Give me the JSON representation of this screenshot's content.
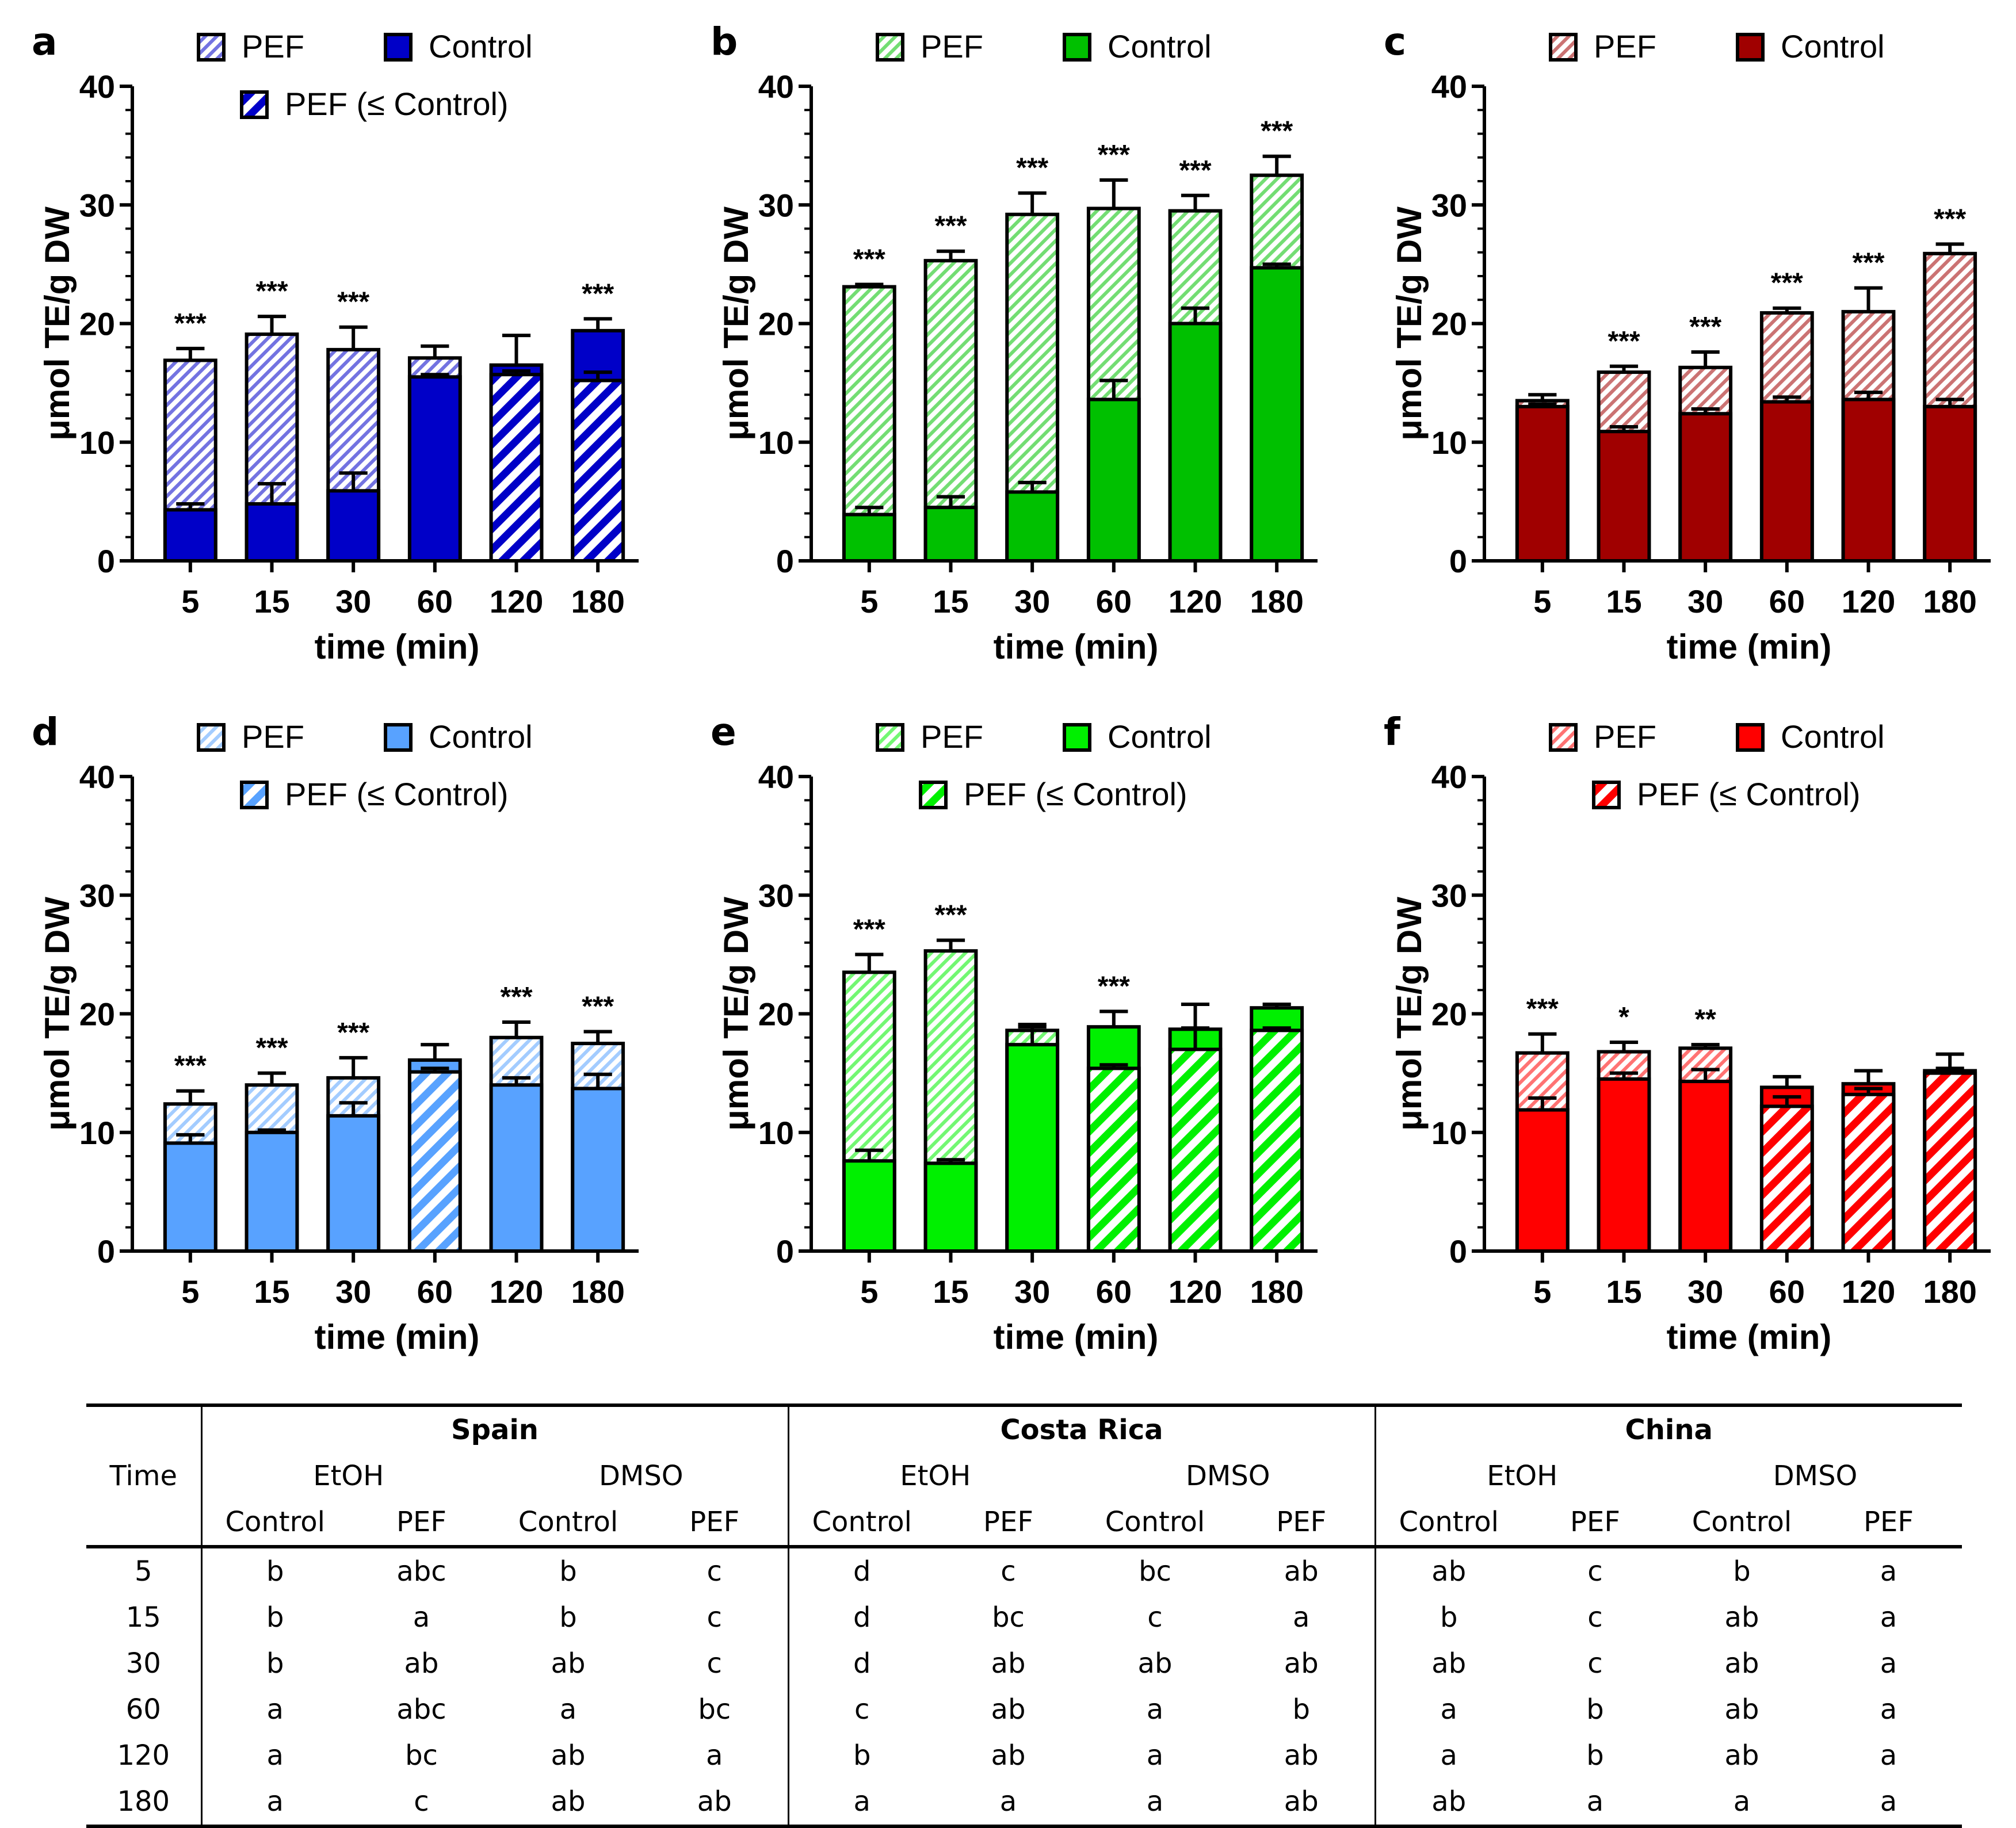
{
  "chart_data": [
    {
      "type": "bar",
      "panel": "a",
      "title": "",
      "xlabel": "time (min)",
      "ylabel": "μmol TE/g DW",
      "ylim": [
        0,
        40
      ],
      "yticks": [
        "0",
        "10",
        "20",
        "30",
        "40"
      ],
      "categories": [
        "5",
        "15",
        "30",
        "60",
        "120",
        "180"
      ],
      "colors": {
        "main": "#0000C8",
        "light": "#9FA3E6"
      },
      "legend": [
        "PEF",
        "Control",
        "PEF (≤ Control)"
      ],
      "series": [
        {
          "name": "PEF",
          "values": [
            16.9,
            19.1,
            17.8,
            17.1,
            15.7,
            15.2
          ],
          "errors": [
            1.0,
            1.5,
            1.9,
            1.0,
            0.3,
            0.7
          ]
        },
        {
          "name": "Control",
          "values": [
            4.3,
            4.8,
            5.9,
            15.5,
            16.5,
            19.4
          ],
          "errors": [
            0.5,
            1.7,
            1.5,
            0.2,
            2.5,
            1.0
          ]
        }
      ],
      "significance": [
        "***",
        "***",
        "***",
        "",
        "",
        "***"
      ]
    },
    {
      "type": "bar",
      "panel": "b",
      "title": "",
      "xlabel": "time (min)",
      "ylabel": "μmol TE/g DW",
      "ylim": [
        0,
        40
      ],
      "yticks": [
        "0",
        "10",
        "20",
        "30",
        "40"
      ],
      "categories": [
        "5",
        "15",
        "30",
        "60",
        "120",
        "180"
      ],
      "colors": {
        "main": "#00C000",
        "light": "#A6E2A6"
      },
      "legend": [
        "PEF",
        "Control"
      ],
      "series": [
        {
          "name": "PEF",
          "values": [
            23.1,
            25.3,
            29.2,
            29.7,
            29.5,
            32.5
          ],
          "errors": [
            0.2,
            0.8,
            1.8,
            2.4,
            1.3,
            1.6
          ]
        },
        {
          "name": "Control",
          "values": [
            3.9,
            4.5,
            5.8,
            13.6,
            20.0,
            24.7
          ],
          "errors": [
            0.6,
            0.9,
            0.8,
            1.6,
            1.3,
            0.3
          ]
        }
      ],
      "significance": [
        "***",
        "***",
        "***",
        "***",
        "***",
        "***"
      ]
    },
    {
      "type": "bar",
      "panel": "c",
      "title": "",
      "xlabel": "time (min)",
      "ylabel": "μmol TE/g DW",
      "ylim": [
        0,
        40
      ],
      "yticks": [
        "0",
        "10",
        "20",
        "30",
        "40"
      ],
      "categories": [
        "5",
        "15",
        "30",
        "60",
        "120",
        "180"
      ],
      "colors": {
        "main": "#A00000",
        "light": "#E6B5B5"
      },
      "legend": [
        "PEF",
        "Control"
      ],
      "series": [
        {
          "name": "PEF",
          "values": [
            13.5,
            15.9,
            16.3,
            20.9,
            21.0,
            25.9
          ],
          "errors": [
            0.5,
            0.5,
            1.3,
            0.4,
            2.0,
            0.8
          ]
        },
        {
          "name": "Control",
          "values": [
            13.0,
            10.9,
            12.4,
            13.4,
            13.6,
            13.0
          ],
          "errors": [
            0.2,
            0.4,
            0.4,
            0.4,
            0.6,
            0.6
          ]
        }
      ],
      "significance": [
        "",
        "***",
        "***",
        "***",
        "***",
        "***"
      ]
    },
    {
      "type": "bar",
      "panel": "d",
      "title": "",
      "xlabel": "time (min)",
      "ylabel": "μmol TE/g DW",
      "ylim": [
        0,
        40
      ],
      "yticks": [
        "0",
        "10",
        "20",
        "30",
        "40"
      ],
      "categories": [
        "5",
        "15",
        "30",
        "60",
        "120",
        "180"
      ],
      "colors": {
        "main": "#58A2FF",
        "light": "#C5DDFA"
      },
      "legend": [
        "PEF",
        "Control",
        "PEF (≤ Control)"
      ],
      "series": [
        {
          "name": "PEF",
          "values": [
            12.4,
            14.0,
            14.6,
            15.1,
            18.0,
            17.5
          ],
          "errors": [
            1.1,
            1.0,
            1.7,
            0.3,
            1.3,
            1.0
          ]
        },
        {
          "name": "Control",
          "values": [
            9.1,
            10.0,
            11.4,
            16.1,
            14.0,
            13.7
          ],
          "errors": [
            0.7,
            0.2,
            1.1,
            1.3,
            0.6,
            1.2
          ]
        }
      ],
      "significance": [
        "***",
        "***",
        "***",
        "",
        "***",
        "***"
      ]
    },
    {
      "type": "bar",
      "panel": "e",
      "title": "",
      "xlabel": "time (min)",
      "ylabel": "μmol TE/g DW",
      "ylim": [
        0,
        40
      ],
      "yticks": [
        "0",
        "10",
        "20",
        "30",
        "40"
      ],
      "categories": [
        "5",
        "15",
        "30",
        "60",
        "120",
        "180"
      ],
      "colors": {
        "main": "#00F000",
        "light": "#ADF2AD"
      },
      "legend": [
        "PEF",
        "Control",
        "PEF (≤ Control)"
      ],
      "series": [
        {
          "name": "PEF",
          "values": [
            23.5,
            25.3,
            18.6,
            15.4,
            17.0,
            18.6
          ],
          "errors": [
            1.5,
            0.9,
            0.3,
            0.3,
            1.8,
            0.2
          ]
        },
        {
          "name": "Control",
          "values": [
            7.6,
            7.4,
            17.4,
            18.9,
            18.7,
            20.5
          ],
          "errors": [
            0.9,
            0.3,
            1.7,
            1.3,
            2.1,
            0.3
          ]
        }
      ],
      "significance": [
        "***",
        "***",
        "",
        "***",
        "",
        ""
      ]
    },
    {
      "type": "bar",
      "panel": "f",
      "title": "",
      "xlabel": "time (min)",
      "ylabel": "μmol TE/g DW",
      "ylim": [
        0,
        40
      ],
      "yticks": [
        "0",
        "10",
        "20",
        "30",
        "40"
      ],
      "categories": [
        "5",
        "15",
        "30",
        "60",
        "120",
        "180"
      ],
      "colors": {
        "main": "#FF0000",
        "light": "#F7B8B8"
      },
      "legend": [
        "PEF",
        "Control",
        "PEF (≤ Control)"
      ],
      "series": [
        {
          "name": "PEF",
          "values": [
            16.7,
            16.8,
            17.1,
            12.2,
            13.2,
            15.0
          ],
          "errors": [
            1.6,
            0.8,
            0.3,
            0.8,
            0.5,
            0.4
          ]
        },
        {
          "name": "Control",
          "values": [
            11.9,
            14.5,
            14.3,
            13.8,
            14.1,
            15.2
          ],
          "errors": [
            1.0,
            0.5,
            1.0,
            0.9,
            1.1,
            1.4
          ]
        }
      ],
      "significance": [
        "***",
        "*",
        "**",
        "",
        "",
        ""
      ]
    }
  ],
  "table": {
    "time_header": "Time",
    "countries": [
      "Spain",
      "Costa Rica",
      "China"
    ],
    "solvents": [
      "EtOH",
      "DMSO"
    ],
    "treatments": [
      "Control",
      "PEF"
    ],
    "rows": [
      {
        "time": "5",
        "cells": [
          "b",
          "abc",
          "b",
          "c",
          "d",
          "c",
          "bc",
          "ab",
          "ab",
          "c",
          "b",
          "a"
        ]
      },
      {
        "time": "15",
        "cells": [
          "b",
          "a",
          "b",
          "c",
          "d",
          "bc",
          "c",
          "a",
          "b",
          "c",
          "ab",
          "a"
        ]
      },
      {
        "time": "30",
        "cells": [
          "b",
          "ab",
          "ab",
          "c",
          "d",
          "ab",
          "ab",
          "ab",
          "ab",
          "c",
          "ab",
          "a"
        ]
      },
      {
        "time": "60",
        "cells": [
          "a",
          "abc",
          "a",
          "bc",
          "c",
          "ab",
          "a",
          "b",
          "a",
          "b",
          "ab",
          "a"
        ]
      },
      {
        "time": "120",
        "cells": [
          "a",
          "bc",
          "ab",
          "a",
          "b",
          "ab",
          "a",
          "ab",
          "a",
          "b",
          "ab",
          "a"
        ]
      },
      {
        "time": "180",
        "cells": [
          "a",
          "c",
          "ab",
          "ab",
          "a",
          "a",
          "a",
          "ab",
          "ab",
          "a",
          "a",
          "a"
        ]
      }
    ]
  }
}
